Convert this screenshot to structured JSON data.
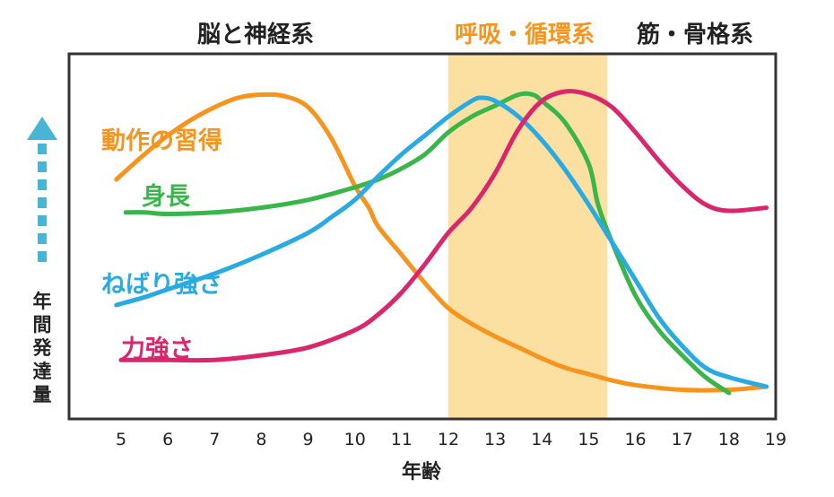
{
  "chart_data": {
    "type": "line",
    "xlabel": "年齢",
    "ylabel": "年間発達量",
    "xlim": [
      4,
      19
    ],
    "x_ticks": [
      5,
      6,
      7,
      8,
      9,
      10,
      11,
      12,
      13,
      14,
      15,
      16,
      17,
      18,
      19
    ],
    "ylim": [
      0,
      100
    ],
    "grid": false,
    "headers": [
      {
        "text": "脳と神経系",
        "color": "#222222"
      },
      {
        "text": "呼吸・循環系",
        "color": "#f7941d"
      },
      {
        "text": "筋・骨格系",
        "color": "#222222"
      }
    ],
    "highlight_band": {
      "from": 12,
      "to": 15.4,
      "color": "#fbe0a1"
    },
    "series": [
      {
        "name": "動作の習得",
        "color": "#f7941d",
        "points": [
          [
            4.9,
            70
          ],
          [
            5.5,
            78
          ],
          [
            6,
            84
          ],
          [
            6.5,
            89
          ],
          [
            7,
            93
          ],
          [
            7.5,
            96
          ],
          [
            8,
            97
          ],
          [
            8.5,
            96.5
          ],
          [
            9,
            93
          ],
          [
            9.5,
            83
          ],
          [
            10,
            68
          ],
          [
            10.3,
            61
          ],
          [
            10.5,
            55
          ],
          [
            11,
            46
          ],
          [
            11.5,
            37
          ],
          [
            12,
            29
          ],
          [
            12.5,
            24
          ],
          [
            13,
            20
          ],
          [
            13.5,
            16.5
          ],
          [
            14,
            13
          ],
          [
            14.5,
            10
          ],
          [
            15,
            8
          ],
          [
            15.5,
            6
          ],
          [
            16,
            4.5
          ],
          [
            17,
            3
          ],
          [
            18,
            3
          ],
          [
            18.8,
            4
          ]
        ]
      },
      {
        "name": "身長",
        "color": "#39b54a",
        "points": [
          [
            5.1,
            59.5
          ],
          [
            5.5,
            59.5
          ],
          [
            6,
            59
          ],
          [
            7,
            59.5
          ],
          [
            8,
            61
          ],
          [
            9,
            63.5
          ],
          [
            10,
            67.5
          ],
          [
            10.5,
            70
          ],
          [
            11,
            73.5
          ],
          [
            11.5,
            78
          ],
          [
            12,
            85
          ],
          [
            12.5,
            90
          ],
          [
            13,
            93.5
          ],
          [
            13.5,
            97
          ],
          [
            13.8,
            97
          ],
          [
            14,
            95
          ],
          [
            14.5,
            88
          ],
          [
            15,
            75
          ],
          [
            15.2,
            62
          ],
          [
            15.5,
            50
          ],
          [
            16,
            33
          ],
          [
            16.5,
            22
          ],
          [
            17,
            14
          ],
          [
            17.5,
            7
          ],
          [
            18,
            2
          ]
        ]
      },
      {
        "name": "ねばり強さ",
        "color": "#29abe2",
        "points": [
          [
            4.9,
            30
          ],
          [
            5.5,
            32.5
          ],
          [
            6,
            35
          ],
          [
            7,
            40
          ],
          [
            8,
            46
          ],
          [
            9,
            53
          ],
          [
            9.5,
            58
          ],
          [
            10,
            63.5
          ],
          [
            10.5,
            71
          ],
          [
            11,
            78
          ],
          [
            11.5,
            84
          ],
          [
            12,
            90
          ],
          [
            12.5,
            95
          ],
          [
            12.7,
            96
          ],
          [
            13,
            95
          ],
          [
            13.5,
            90
          ],
          [
            14,
            82.5
          ],
          [
            14.5,
            73
          ],
          [
            15,
            62
          ],
          [
            15.5,
            50
          ],
          [
            16,
            38
          ],
          [
            16.5,
            26
          ],
          [
            17,
            17
          ],
          [
            17.5,
            10
          ],
          [
            18,
            7
          ],
          [
            18.8,
            4
          ]
        ]
      },
      {
        "name": "力強さ",
        "color": "#d9266c",
        "points": [
          [
            5,
            12.5
          ],
          [
            6,
            12.5
          ],
          [
            7,
            12.5
          ],
          [
            8,
            14
          ],
          [
            9,
            16.5
          ],
          [
            10,
            22
          ],
          [
            10.5,
            27
          ],
          [
            11,
            34
          ],
          [
            11.5,
            43
          ],
          [
            12,
            53
          ],
          [
            12.5,
            61
          ],
          [
            13,
            72
          ],
          [
            13.5,
            86
          ],
          [
            14,
            95
          ],
          [
            14.5,
            98
          ],
          [
            15,
            97
          ],
          [
            15.5,
            93
          ],
          [
            16,
            85
          ],
          [
            16.5,
            76
          ],
          [
            17,
            68
          ],
          [
            17.5,
            62
          ],
          [
            18,
            60
          ],
          [
            18.8,
            61
          ]
        ]
      }
    ]
  }
}
